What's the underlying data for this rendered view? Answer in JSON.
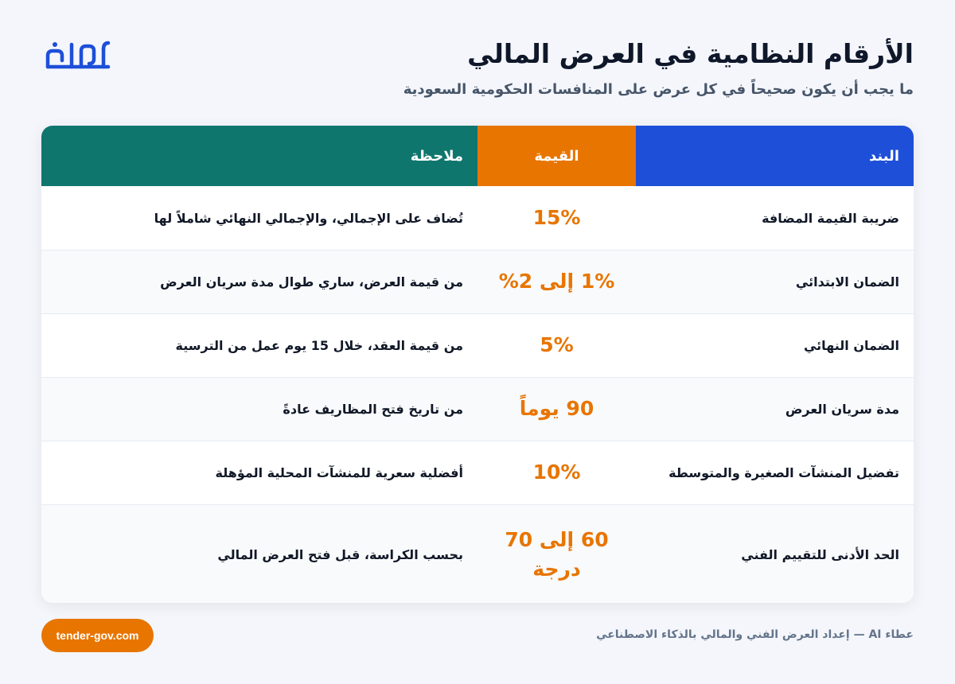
{
  "header": {
    "title": "الأرقام النظامية في العرض المالي",
    "subtitle": "ما يجب أن يكون صحيحاً في كل عرض على المنافسات الحكومية السعودية",
    "logo_text": "عطاء",
    "logo_color": "#1d4fd8"
  },
  "table": {
    "columns": {
      "item": "البند",
      "value": "القيمة",
      "note": "ملاحظة"
    },
    "column_colors": {
      "item": "#1d4fd8",
      "value": "#e87500",
      "note": "#0f766e"
    },
    "rows": [
      {
        "item": "ضريبة القيمة المضافة",
        "value": "15%",
        "note": "تُضاف على الإجمالي، والإجمالي النهائي شاملاً لها"
      },
      {
        "item": "الضمان الابتدائي",
        "value": "1% إلى 2%",
        "note": "من قيمة العرض، ساري طوال مدة سريان العرض"
      },
      {
        "item": "الضمان النهائي",
        "value": "5%",
        "note": "من قيمة العقد، خلال 15 يوم عمل من الترسية"
      },
      {
        "item": "مدة سريان العرض",
        "value": "90 يوماً",
        "note": "من تاريخ فتح المظاريف عادةً"
      },
      {
        "item": "تفضيل المنشآت الصغيرة والمتوسطة",
        "value": "10%",
        "note": "أفضلية سعرية للمنشآت المحلية المؤهلة"
      },
      {
        "item": "الحد الأدنى للتقييم الفني",
        "value": "60 إلى 70 درجة",
        "note": "بحسب الكراسة، قبل فتح العرض المالي"
      }
    ]
  },
  "footer": {
    "website": "tender-gov.com",
    "credit": "عطاء AI — إعداد العرض الفني والمالي بالذكاء الاصطناعي"
  }
}
